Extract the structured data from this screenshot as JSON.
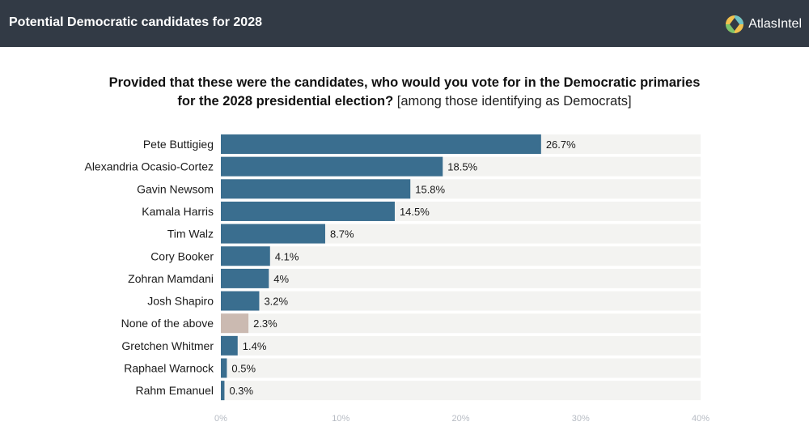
{
  "header": {
    "title": "Potential Democratic candidates for 2028",
    "brand": "AtlasIntel",
    "brand_icon": "atlasintel-logo-icon"
  },
  "question": {
    "bold_line1": "Provided that these were the candidates, who would you vote for in the Democratic primaries",
    "bold_line2": "for the 2028 presidential election?",
    "normal_part": "[among those identifying as Democrats]"
  },
  "colors": {
    "header_bg": "#323a45",
    "bar": "#3a6e8f",
    "bar_highlight": "#cbbab1",
    "track": "#f3f3f1"
  },
  "chart_data": {
    "type": "bar",
    "orientation": "horizontal",
    "title": "Provided that these were the candidates, who would you vote for in the Democratic primaries for the 2028 presidential election? [among those identifying as Democrats]",
    "categories": [
      "Pete Buttigieg",
      "Alexandria Ocasio-Cortez",
      "Gavin Newsom",
      "Kamala Harris",
      "Tim Walz",
      "Cory Booker",
      "Zohran Mamdani",
      "Josh Shapiro",
      "None of the above",
      "Gretchen Whitmer",
      "Raphael Warnock",
      "Rahm Emanuel"
    ],
    "values": [
      26.7,
      18.5,
      15.8,
      14.5,
      8.7,
      4.1,
      4,
      3.2,
      2.3,
      1.4,
      0.5,
      0.3
    ],
    "value_labels": [
      "26.7%",
      "18.5%",
      "15.8%",
      "14.5%",
      "8.7%",
      "4.1%",
      "4%",
      "3.2%",
      "2.3%",
      "1.4%",
      "0.5%",
      "0.3%"
    ],
    "highlight_category": "None of the above",
    "xlim": [
      0,
      40
    ],
    "xticks": [
      0,
      10,
      20,
      30,
      40
    ],
    "xtick_labels": [
      "0%",
      "10%",
      "20%",
      "30%",
      "40%"
    ],
    "xlabel": "",
    "ylabel": "",
    "grid": false
  }
}
